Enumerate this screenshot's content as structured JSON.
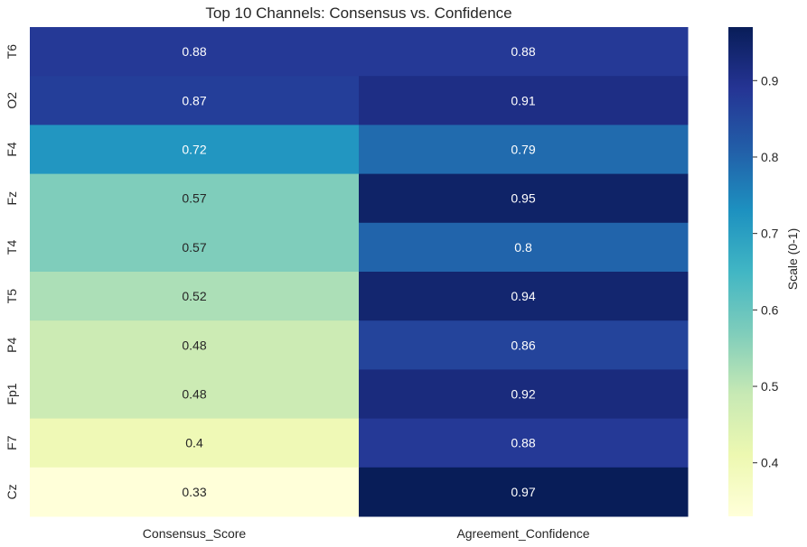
{
  "chart_data": {
    "type": "heatmap",
    "title": "Top 10 Channels: Consensus vs. Confidence",
    "rows": [
      "T6",
      "O2",
      "F4",
      "Fz",
      "T4",
      "T5",
      "P4",
      "Fp1",
      "F7",
      "Cz"
    ],
    "columns": [
      "Consensus_Score",
      "Agreement_Confidence"
    ],
    "values": [
      [
        0.88,
        0.88
      ],
      [
        0.87,
        0.91
      ],
      [
        0.72,
        0.79
      ],
      [
        0.57,
        0.95
      ],
      [
        0.57,
        0.8
      ],
      [
        0.52,
        0.94
      ],
      [
        0.48,
        0.86
      ],
      [
        0.48,
        0.92
      ],
      [
        0.4,
        0.88
      ],
      [
        0.33,
        0.97
      ]
    ],
    "cell_labels": [
      [
        "0.88",
        "0.88"
      ],
      [
        "0.87",
        "0.91"
      ],
      [
        "0.72",
        "0.79"
      ],
      [
        "0.57",
        "0.95"
      ],
      [
        "0.57",
        "0.8"
      ],
      [
        "0.52",
        "0.94"
      ],
      [
        "0.48",
        "0.86"
      ],
      [
        "0.48",
        "0.92"
      ],
      [
        "0.4",
        "0.88"
      ],
      [
        "0.33",
        "0.97"
      ]
    ],
    "colorbar": {
      "label": "Scale (0-1)",
      "ticks": [
        "0.4",
        "0.5",
        "0.6",
        "0.7",
        "0.8",
        "0.9"
      ],
      "range": [
        0.33,
        0.97
      ],
      "colormap": "YlGnBu"
    }
  }
}
